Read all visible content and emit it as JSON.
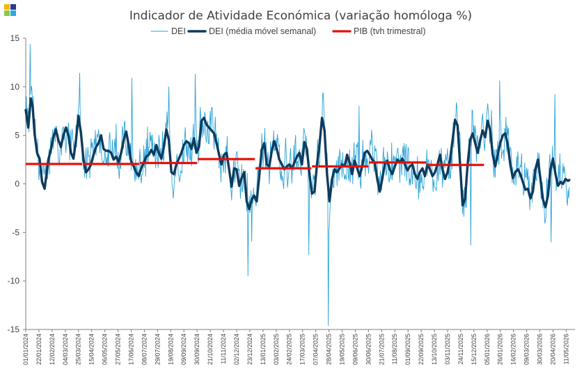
{
  "logo": {
    "colors": [
      "#f5b800",
      "#2e3a87",
      "#8dc63f",
      "#29abe2"
    ]
  },
  "chart_data": {
    "type": "line",
    "title": "Indicador de Atividade Económica (variação homóloga %)",
    "legend_position": "top",
    "grid": false,
    "ylim": [
      -15,
      15
    ],
    "yticks": [
      -15,
      -10,
      -5,
      0,
      5,
      10,
      15
    ],
    "x_range": [
      "2024-01-01",
      "2026-05-25"
    ],
    "x_tick_labels": [
      "01/01/2024",
      "22/01/2024",
      "12/02/2024",
      "04/03/2024",
      "25/03/2024",
      "15/04/2024",
      "06/05/2024",
      "27/05/2024",
      "17/06/2024",
      "08/07/2024",
      "29/07/2024",
      "19/08/2024",
      "09/09/2024",
      "30/09/2024",
      "21/10/2024",
      "11/11/2024",
      "02/12/2024",
      "23/12/2024",
      "13/01/2025",
      "03/02/2025",
      "24/02/2025",
      "17/03/2025",
      "07/04/2025",
      "28/04/2025",
      "19/05/2025",
      "09/06/2025",
      "30/06/2025",
      "21/07/2025",
      "11/08/2025",
      "01/09/2025",
      "22/09/2025",
      "13/10/2025",
      "03/11/2025",
      "24/11/2025",
      "15/12/2025",
      "05/01/2026",
      "26/01/2026",
      "16/02/2026",
      "09/03/2026",
      "30/03/2026",
      "20/04/2026",
      "11/05/2026"
    ],
    "series": [
      {
        "name": "DEI",
        "style": "thin",
        "color": "#2aa3d8",
        "date_start": "2024-01-01",
        "step_days": 1
      },
      {
        "name": "DEI (média móvel semanal)",
        "style": "thick",
        "color": "#0d3b5e",
        "points": [
          [
            "2024-01-01",
            7.6
          ],
          [
            "2024-01-05",
            5.8
          ],
          [
            "2024-01-09",
            8.8
          ],
          [
            "2024-01-12",
            8.0
          ],
          [
            "2024-01-15",
            5.2
          ],
          [
            "2024-01-19",
            3.2
          ],
          [
            "2024-01-23",
            2.6
          ],
          [
            "2024-01-27",
            0.2
          ],
          [
            "2024-01-31",
            -0.5
          ],
          [
            "2024-02-03",
            1.0
          ],
          [
            "2024-02-06",
            2.5
          ],
          [
            "2024-02-10",
            3.5
          ],
          [
            "2024-02-14",
            4.8
          ],
          [
            "2024-02-18",
            5.6
          ],
          [
            "2024-02-22",
            4.5
          ],
          [
            "2024-02-26",
            3.8
          ],
          [
            "2024-03-01",
            5.0
          ],
          [
            "2024-03-05",
            5.8
          ],
          [
            "2024-03-09",
            5.0
          ],
          [
            "2024-03-13",
            3.2
          ],
          [
            "2024-03-17",
            2.6
          ],
          [
            "2024-03-21",
            4.5
          ],
          [
            "2024-03-25",
            7.0
          ],
          [
            "2024-03-29",
            5.2
          ],
          [
            "2024-04-02",
            2.5
          ],
          [
            "2024-04-06",
            1.2
          ],
          [
            "2024-04-10",
            1.5
          ],
          [
            "2024-04-14",
            2.0
          ],
          [
            "2024-04-18",
            3.0
          ],
          [
            "2024-04-22",
            3.8
          ],
          [
            "2024-04-26",
            4.2
          ],
          [
            "2024-04-30",
            5.0
          ],
          [
            "2024-05-04",
            3.6
          ],
          [
            "2024-05-08",
            3.4
          ],
          [
            "2024-05-12",
            3.4
          ],
          [
            "2024-05-16",
            3.2
          ],
          [
            "2024-05-20",
            2.5
          ],
          [
            "2024-05-24",
            2.8
          ],
          [
            "2024-05-28",
            2.2
          ],
          [
            "2024-06-01",
            3.2
          ],
          [
            "2024-06-05",
            4.5
          ],
          [
            "2024-06-09",
            5.4
          ],
          [
            "2024-06-13",
            4.0
          ],
          [
            "2024-06-17",
            2.3
          ],
          [
            "2024-06-21",
            1.8
          ],
          [
            "2024-06-25",
            1.2
          ],
          [
            "2024-06-29",
            0.8
          ],
          [
            "2024-07-03",
            1.6
          ],
          [
            "2024-07-07",
            2.2
          ],
          [
            "2024-07-11",
            2.8
          ],
          [
            "2024-07-15",
            3.0
          ],
          [
            "2024-07-19",
            3.5
          ],
          [
            "2024-07-23",
            3.0
          ],
          [
            "2024-07-27",
            4.0
          ],
          [
            "2024-07-31",
            3.2
          ],
          [
            "2024-08-04",
            2.6
          ],
          [
            "2024-08-08",
            3.8
          ],
          [
            "2024-08-12",
            5.6
          ],
          [
            "2024-08-16",
            4.5
          ],
          [
            "2024-08-20",
            1.2
          ],
          [
            "2024-08-24",
            1.0
          ],
          [
            "2024-08-28",
            2.0
          ],
          [
            "2024-09-01",
            2.6
          ],
          [
            "2024-09-05",
            3.2
          ],
          [
            "2024-09-09",
            4.0
          ],
          [
            "2024-09-13",
            4.4
          ],
          [
            "2024-09-17",
            4.2
          ],
          [
            "2024-09-21",
            3.6
          ],
          [
            "2024-09-25",
            4.7
          ],
          [
            "2024-09-29",
            3.2
          ],
          [
            "2024-10-03",
            3.8
          ],
          [
            "2024-10-07",
            6.5
          ],
          [
            "2024-10-11",
            6.8
          ],
          [
            "2024-10-15",
            6.1
          ],
          [
            "2024-10-19",
            5.8
          ],
          [
            "2024-10-23",
            5.5
          ],
          [
            "2024-10-27",
            5.2
          ],
          [
            "2024-10-31",
            4.2
          ],
          [
            "2024-11-04",
            3.0
          ],
          [
            "2024-11-08",
            2.0
          ],
          [
            "2024-11-12",
            3.0
          ],
          [
            "2024-11-16",
            3.2
          ],
          [
            "2024-11-20",
            1.5
          ],
          [
            "2024-11-24",
            -0.3
          ],
          [
            "2024-11-28",
            1.6
          ],
          [
            "2024-12-02",
            1.5
          ],
          [
            "2024-12-06",
            -0.2
          ],
          [
            "2024-12-10",
            0.6
          ],
          [
            "2024-12-14",
            1.2
          ],
          [
            "2024-12-18",
            -1.8
          ],
          [
            "2024-12-22",
            -2.6
          ],
          [
            "2024-12-26",
            -1.6
          ],
          [
            "2024-12-30",
            -1.2
          ],
          [
            "2025-01-03",
            -1.8
          ],
          [
            "2025-01-07",
            0.8
          ],
          [
            "2025-01-11",
            3.5
          ],
          [
            "2025-01-15",
            4.2
          ],
          [
            "2025-01-19",
            2.0
          ],
          [
            "2025-01-23",
            1.8
          ],
          [
            "2025-01-27",
            3.4
          ],
          [
            "2025-01-31",
            4.4
          ],
          [
            "2025-02-04",
            3.6
          ],
          [
            "2025-02-08",
            2.5
          ],
          [
            "2025-02-12",
            2.0
          ],
          [
            "2025-02-16",
            1.5
          ],
          [
            "2025-02-20",
            1.8
          ],
          [
            "2025-02-24",
            2.0
          ],
          [
            "2025-02-28",
            1.6
          ],
          [
            "2025-03-04",
            2.2
          ],
          [
            "2025-03-08",
            2.8
          ],
          [
            "2025-03-12",
            3.2
          ],
          [
            "2025-03-16",
            2.0
          ],
          [
            "2025-03-20",
            4.3
          ],
          [
            "2025-03-24",
            3.6
          ],
          [
            "2025-03-28",
            1.0
          ],
          [
            "2025-04-01",
            -1.0
          ],
          [
            "2025-04-05",
            -0.8
          ],
          [
            "2025-04-09",
            2.0
          ],
          [
            "2025-04-13",
            4.0
          ],
          [
            "2025-04-17",
            6.8
          ],
          [
            "2025-04-21",
            5.5
          ],
          [
            "2025-04-25",
            1.0
          ],
          [
            "2025-04-29",
            -1.8
          ],
          [
            "2025-05-03",
            0.5
          ],
          [
            "2025-05-07",
            1.5
          ],
          [
            "2025-05-11",
            1.2
          ],
          [
            "2025-05-15",
            1.6
          ],
          [
            "2025-05-19",
            2.0
          ],
          [
            "2025-05-23",
            1.8
          ],
          [
            "2025-05-27",
            3.0
          ],
          [
            "2025-05-31",
            2.2
          ],
          [
            "2025-06-04",
            1.0
          ],
          [
            "2025-06-08",
            2.4
          ],
          [
            "2025-06-12",
            1.6
          ],
          [
            "2025-06-16",
            0.8
          ],
          [
            "2025-06-20",
            1.8
          ],
          [
            "2025-06-24",
            3.2
          ],
          [
            "2025-06-28",
            3.4
          ],
          [
            "2025-07-02",
            3.0
          ],
          [
            "2025-07-06",
            2.5
          ],
          [
            "2025-07-10",
            2.2
          ],
          [
            "2025-07-14",
            0.5
          ],
          [
            "2025-07-18",
            -0.8
          ],
          [
            "2025-07-22",
            0.5
          ],
          [
            "2025-07-26",
            2.0
          ],
          [
            "2025-07-30",
            2.4
          ],
          [
            "2025-08-03",
            1.5
          ],
          [
            "2025-08-07",
            1.0
          ],
          [
            "2025-08-11",
            1.8
          ],
          [
            "2025-08-15",
            2.5
          ],
          [
            "2025-08-19",
            2.2
          ],
          [
            "2025-08-23",
            2.6
          ],
          [
            "2025-08-27",
            2.0
          ],
          [
            "2025-08-31",
            1.4
          ],
          [
            "2025-09-04",
            1.8
          ],
          [
            "2025-09-08",
            2.0
          ],
          [
            "2025-09-12",
            1.0
          ],
          [
            "2025-09-16",
            0.5
          ],
          [
            "2025-09-20",
            1.2
          ],
          [
            "2025-09-24",
            1.6
          ],
          [
            "2025-09-28",
            0.8
          ],
          [
            "2025-10-02",
            2.0
          ],
          [
            "2025-10-06",
            1.5
          ],
          [
            "2025-10-10",
            0.8
          ],
          [
            "2025-10-14",
            1.2
          ],
          [
            "2025-10-18",
            2.0
          ],
          [
            "2025-10-22",
            3.0
          ],
          [
            "2025-10-26",
            1.5
          ],
          [
            "2025-10-30",
            0.5
          ],
          [
            "2025-11-03",
            1.2
          ],
          [
            "2025-11-07",
            2.5
          ],
          [
            "2025-11-11",
            4.5
          ],
          [
            "2025-11-15",
            6.6
          ],
          [
            "2025-11-19",
            6.0
          ],
          [
            "2025-11-23",
            2.0
          ],
          [
            "2025-11-27",
            -2.2
          ],
          [
            "2025-12-01",
            -1.5
          ],
          [
            "2025-12-05",
            2.0
          ],
          [
            "2025-12-09",
            4.5
          ],
          [
            "2025-12-13",
            5.2
          ],
          [
            "2025-12-17",
            4.2
          ],
          [
            "2025-12-21",
            3.2
          ],
          [
            "2025-12-25",
            4.5
          ],
          [
            "2025-12-29",
            5.5
          ],
          [
            "2026-01-02",
            4.8
          ],
          [
            "2026-01-06",
            6.5
          ],
          [
            "2026-01-10",
            5.5
          ],
          [
            "2026-01-14",
            3.0
          ],
          [
            "2026-01-18",
            1.8
          ],
          [
            "2026-01-22",
            3.0
          ],
          [
            "2026-01-26",
            4.2
          ],
          [
            "2026-01-30",
            5.0
          ],
          [
            "2026-02-03",
            5.2
          ],
          [
            "2026-02-07",
            4.0
          ],
          [
            "2026-02-11",
            2.0
          ],
          [
            "2026-02-15",
            0.6
          ],
          [
            "2026-02-19",
            1.2
          ],
          [
            "2026-02-23",
            1.5
          ],
          [
            "2026-02-27",
            1.0
          ],
          [
            "2026-03-03",
            0.2
          ],
          [
            "2026-03-07",
            -0.6
          ],
          [
            "2026-03-11",
            -0.5
          ],
          [
            "2026-03-15",
            -1.5
          ],
          [
            "2026-03-19",
            -0.8
          ],
          [
            "2026-03-23",
            1.5
          ],
          [
            "2026-03-27",
            2.5
          ],
          [
            "2026-03-31",
            0.5
          ],
          [
            "2026-04-04",
            -1.6
          ],
          [
            "2026-04-08",
            -2.4
          ],
          [
            "2026-04-12",
            -1.2
          ],
          [
            "2026-04-16",
            1.5
          ],
          [
            "2026-04-20",
            2.6
          ],
          [
            "2026-04-24",
            1.0
          ],
          [
            "2026-04-28",
            -0.2
          ],
          [
            "2026-05-02",
            0.2
          ],
          [
            "2026-05-06",
            0.0
          ],
          [
            "2026-05-10",
            0.5
          ],
          [
            "2026-05-14",
            0.3
          ],
          [
            "2026-05-16",
            0.4
          ]
        ]
      },
      {
        "name": "PIB (tvh trimestral)",
        "style": "step",
        "color": "#e3120b",
        "segments": [
          [
            "2024-01-01",
            "2024-03-31",
            2.05
          ],
          [
            "2024-04-01",
            "2024-06-30",
            2.05
          ],
          [
            "2024-07-01",
            "2024-09-30",
            2.15
          ],
          [
            "2024-10-01",
            "2024-12-31",
            2.55
          ],
          [
            "2025-01-01",
            "2025-03-31",
            1.6
          ],
          [
            "2025-04-01",
            "2025-06-30",
            1.8
          ],
          [
            "2025-07-01",
            "2025-09-30",
            2.2
          ],
          [
            "2025-10-01",
            "2025-12-31",
            1.95
          ]
        ]
      }
    ]
  }
}
